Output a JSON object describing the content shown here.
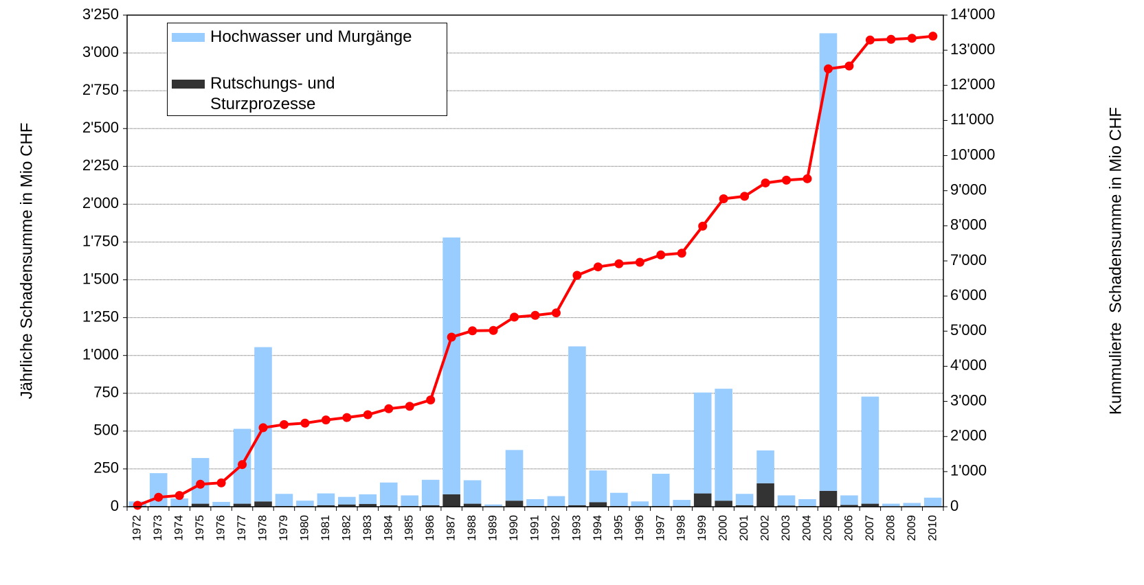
{
  "chart_data": {
    "type": "bar_line",
    "y_label": "Jährliche Schadensumme in Mio CHF",
    "y2_label": "Kummulierte  Schadensumme in Mio CHF",
    "categories": [
      "1972",
      "1973",
      "1974",
      "1975",
      "1976",
      "1977",
      "1978",
      "1979",
      "1980",
      "1981",
      "1982",
      "1983",
      "1984",
      "1985",
      "1986",
      "1987",
      "1988",
      "1989",
      "1990",
      "1991",
      "1992",
      "1993",
      "1994",
      "1995",
      "1996",
      "1997",
      "1998",
      "1999",
      "2000",
      "2001",
      "2002",
      "2003",
      "2004",
      "2005",
      "2006",
      "2007",
      "2008",
      "2009",
      "2010"
    ],
    "series": [
      {
        "name": "Rutschungs- und\nSturzprozesse",
        "color": "#333333",
        "type": "bar",
        "values": [
          5,
          5,
          5,
          20,
          5,
          20,
          35,
          5,
          5,
          10,
          15,
          18,
          10,
          5,
          10,
          82,
          20,
          3,
          40,
          5,
          5,
          10,
          30,
          5,
          3,
          5,
          5,
          88,
          40,
          10,
          155,
          8,
          5,
          105,
          12,
          20,
          3,
          3,
          3
        ]
      },
      {
        "name": "Hochwasser und Murgänge",
        "color": "#99ccff",
        "type": "bar",
        "values": [
          30,
          217,
          50,
          302,
          27,
          495,
          1020,
          80,
          35,
          78,
          50,
          64,
          150,
          70,
          168,
          1698,
          155,
          12,
          335,
          45,
          65,
          1050,
          210,
          87,
          32,
          213,
          40,
          667,
          740,
          75,
          217,
          67,
          45,
          3025,
          63,
          708,
          17,
          22,
          57
        ]
      },
      {
        "color": "#ff0000",
        "type": "line",
        "axis": "y2",
        "values": [
          40,
          270,
          320,
          640,
          680,
          1200,
          2250,
          2340,
          2380,
          2470,
          2540,
          2620,
          2790,
          2860,
          3040,
          4830,
          5010,
          5020,
          5400,
          5450,
          5520,
          6590,
          6830,
          6920,
          6960,
          7170,
          7220,
          7990,
          8770,
          8840,
          9220,
          9300,
          9340,
          12470,
          12550,
          13290,
          13310,
          13340,
          13400
        ]
      }
    ],
    "ylim": [
      0,
      3250
    ],
    "yticks": [
      0,
      250,
      500,
      750,
      {
        "value": 1000,
        "label": "1'000"
      },
      {
        "value": 1250,
        "label": "1'250"
      },
      {
        "value": 1500,
        "label": "1'500"
      },
      {
        "value": 1750,
        "label": "1'750"
      },
      {
        "value": 2000,
        "label": "2'000"
      },
      {
        "value": 2250,
        "label": "2'250"
      },
      {
        "value": 2500,
        "label": "2'500"
      },
      {
        "value": 2750,
        "label": "2'750"
      },
      {
        "value": 3000,
        "label": "3'000"
      },
      {
        "value": 3250,
        "label": "3'250"
      }
    ],
    "y2lim": [
      0,
      14000
    ],
    "y2ticks": [
      0,
      {
        "value": 1000,
        "label": "1'000"
      },
      {
        "value": 2000,
        "label": "2'000"
      },
      {
        "value": 3000,
        "label": "3'000"
      },
      {
        "value": 4000,
        "label": "4'000"
      },
      {
        "value": 5000,
        "label": "5'000"
      },
      {
        "value": 6000,
        "label": "6'000"
      },
      {
        "value": 7000,
        "label": "7'000"
      },
      {
        "value": 8000,
        "label": "8'000"
      },
      {
        "value": 9000,
        "label": "9'000"
      },
      {
        "value": 10000,
        "label": "10'000"
      },
      {
        "value": 11000,
        "label": "11'000"
      },
      {
        "value": 12000,
        "label": "12'000"
      },
      {
        "value": 13000,
        "label": "13'000"
      },
      {
        "value": 14000,
        "label": "14'000"
      }
    ],
    "grid": true
  }
}
